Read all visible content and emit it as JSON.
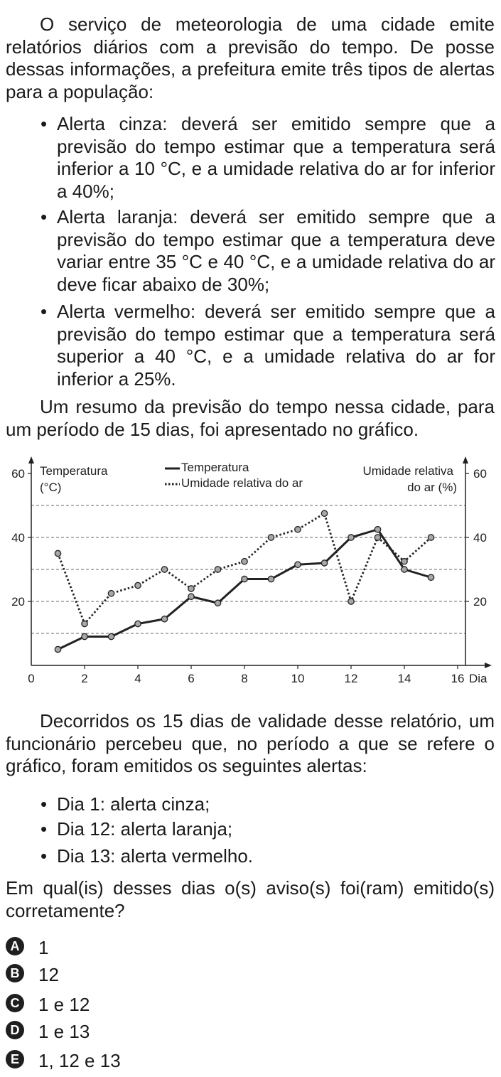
{
  "intro": "O serviço de meteorologia de uma cidade emite relatórios diários com a previsão do tempo. De posse dessas informações, a prefeitura emite três tipos de alertas para a população:",
  "alert_bullets": [
    "Alerta cinza: deverá ser emitido sempre que a previsão do tempo estimar que a temperatura será inferior a 10 °C, e a umidade relativa do ar for inferior a 40%;",
    "Alerta laranja: deverá ser emitido sempre que a previsão do tempo estimar que a temperatura deve variar entre 35 °C e 40 °C, e a umidade relativa do ar deve ficar abaixo de 30%;",
    "Alerta vermelho: deverá ser emitido sempre que a previsão do tempo estimar que a temperatura será superior a 40 °C, e a umidade relativa do ar for inferior a 25%."
  ],
  "summary": "Um resumo da previsão do tempo nessa cidade, para um período de 15 dias, foi apresentado no gráfico.",
  "chart_data": {
    "type": "line",
    "y_left_label": [
      "Temperatura",
      "(°C)"
    ],
    "y_right_label": [
      "Umidade relativa",
      "do ar (%)"
    ],
    "x_axis_label": "Dia",
    "x_ticks": [
      "0",
      "2",
      "4",
      "6",
      "8",
      "10",
      "12",
      "14",
      "16"
    ],
    "y_ticks_left": [
      "60",
      "40",
      "20"
    ],
    "y_ticks_right": [
      "60",
      "40",
      "20"
    ],
    "xlim": [
      0,
      16
    ],
    "ylim": [
      0,
      60
    ],
    "dashed_gridlines_at": [
      10,
      20,
      30,
      40,
      50
    ],
    "legend": [
      "Temperatura",
      "Umidade relativa do ar"
    ],
    "legend_position": "top-center",
    "series": [
      {
        "name": "Temperatura",
        "style": "solid",
        "x": [
          1,
          2,
          3,
          4,
          5,
          6,
          7,
          8,
          9,
          10,
          11,
          12,
          13,
          14,
          15
        ],
        "y": [
          5,
          9,
          9,
          13,
          14.5,
          21.5,
          19.5,
          27,
          27,
          31.5,
          32,
          40,
          42.5,
          30,
          27.5
        ]
      },
      {
        "name": "Umidade relativa do ar",
        "style": "dotted",
        "x": [
          1,
          2,
          3,
          4,
          5,
          6,
          7,
          8,
          9,
          10,
          11,
          12,
          13,
          14,
          15
        ],
        "y": [
          35,
          13,
          22.5,
          25,
          30,
          24,
          30,
          32.5,
          40,
          42.5,
          47.5,
          20,
          40,
          32.5,
          40
        ]
      }
    ]
  },
  "after_chart": "Decorridos os 15 dias de validade desse relatório, um funcionário percebeu que, no período a que se refere o gráfico, foram emitidos os seguintes alertas:",
  "issued_alerts": [
    "Dia 1: alerta cinza;",
    "Dia 12: alerta laranja;",
    "Dia 13: alerta vermelho."
  ],
  "question": "Em qual(is) desses dias o(s) aviso(s) foi(ram) emitido(s) corretamente?",
  "options": [
    {
      "letter": "A",
      "text": "1"
    },
    {
      "letter": "B",
      "text": "12"
    },
    {
      "letter": "C",
      "text": "1 e 12"
    },
    {
      "letter": "D",
      "text": "1 e 13"
    },
    {
      "letter": "E",
      "text": "1, 12 e 13"
    }
  ]
}
